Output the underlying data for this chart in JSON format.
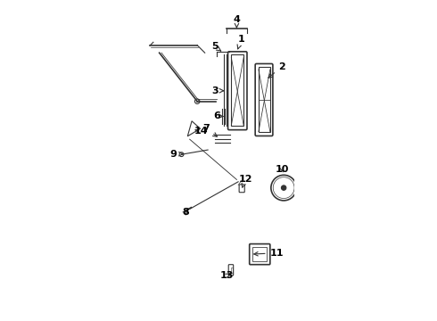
{
  "bg_color": "#ffffff",
  "line_color": "#333333",
  "label_color": "#000000",
  "lw_thin": 0.8,
  "lw_med": 1.2,
  "fs": 8,
  "xlim": [
    0,
    5.0
  ],
  "ylim": [
    0,
    10.5
  ],
  "figsize": [
    4.9,
    3.6
  ],
  "dpi": 100
}
